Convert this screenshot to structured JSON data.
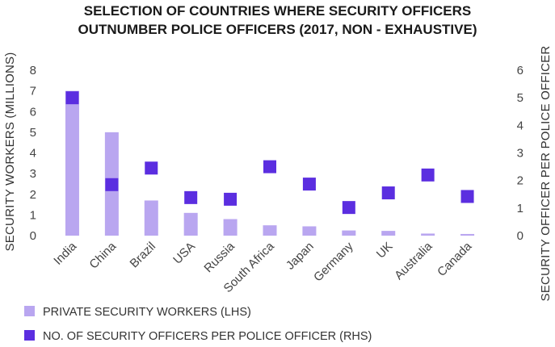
{
  "chart_data": {
    "type": "bar",
    "title_line1": "SELECTION OF COUNTRIES WHERE SECURITY OFFICERS",
    "title_line2": "OUTNUMBER POLICE OFFICERS (2017, NON - EXHAUSTIVE)",
    "ylabel_left": "SECURITY WORKERS (MILLIONS)",
    "ylabel_right": "SECURITY OFFICER PER POLICE OFFICER",
    "ylim_left": [
      0,
      8
    ],
    "ylim_right": [
      0,
      6
    ],
    "yticks_left": [
      "0",
      "1",
      "2",
      "3",
      "4",
      "5",
      "6",
      "7",
      "8"
    ],
    "yticks_right": [
      "0",
      "1",
      "2",
      "3",
      "4",
      "5",
      "6"
    ],
    "categories": [
      "India",
      "China",
      "Brazil",
      "USA",
      "Russia",
      "South Africa",
      "Japan",
      "Germany",
      "UK",
      "Australia",
      "Canada"
    ],
    "series": [
      {
        "name": "PRIVATE SECURITY WORKERS (LHS)",
        "kind": "bar",
        "axis": "left",
        "color": "#b9a6f0",
        "values": [
          7.0,
          5.0,
          1.7,
          1.1,
          0.8,
          0.5,
          0.45,
          0.25,
          0.23,
          0.1,
          0.08
        ]
      },
      {
        "name": "NO. OF SECURITY OFFICERS PER POLICE OFFICER (RHS)",
        "kind": "marker",
        "axis": "right",
        "color": "#5b2ee0",
        "values": [
          5.0,
          1.85,
          2.45,
          1.38,
          1.32,
          2.5,
          1.87,
          1.02,
          1.55,
          2.2,
          1.42
        ]
      }
    ],
    "legend_position": "bottom-left",
    "grid": false
  }
}
